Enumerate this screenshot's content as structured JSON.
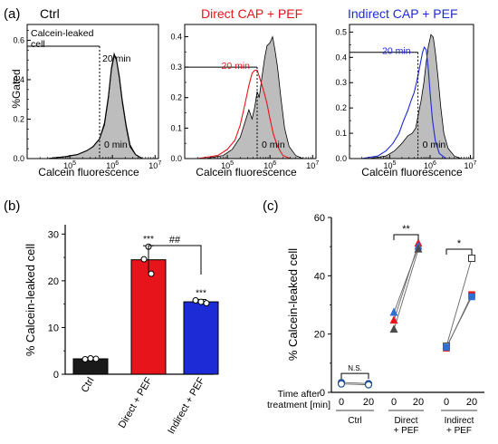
{
  "figure": {
    "panel_a_label": "(a)",
    "panel_b_label": "(b)",
    "panel_c_label": "(c)"
  },
  "colors": {
    "ctrl": "#000000",
    "direct": "#e8141b",
    "indirect": "#1d2bd6",
    "gray_fill": "#bdbdbd",
    "ctrl_bar": "#1a1a1a",
    "direct_triangle": "#e8141b",
    "indirect_triangle": "#2d6fd0",
    "dark_triangle": "#4a4a4a"
  },
  "chart_data": [
    {
      "type": "area",
      "panel": "a",
      "title": "Ctrl",
      "xlabel": "Calcein fluorescence",
      "ylabel": "%Gated",
      "x_scale": "log",
      "xlim": [
        10000,
        12000000
      ],
      "ylim": [
        0,
        0.68
      ],
      "x_ticks": [
        "10^5",
        "10^6",
        "10^7"
      ],
      "y_ticks": [
        "0.0",
        "0.2",
        "0.4",
        "0.6"
      ],
      "gate_label": "Calcein-leaked\ncell",
      "gate_line_x": 500000,
      "gate_line_y": 0.57,
      "series": [
        {
          "label": "0 min",
          "style": "gray-filled",
          "points": [
            [
              30000,
              0.0
            ],
            [
              80000,
              0.01
            ],
            [
              150000,
              0.02
            ],
            [
              250000,
              0.04
            ],
            [
              350000,
              0.06
            ],
            [
              500000,
              0.1
            ],
            [
              650000,
              0.17
            ],
            [
              800000,
              0.3
            ],
            [
              950000,
              0.45
            ],
            [
              1100000,
              0.52
            ],
            [
              1250000,
              0.5
            ],
            [
              1450000,
              0.42
            ],
            [
              1700000,
              0.3
            ],
            [
              2100000,
              0.17
            ],
            [
              2600000,
              0.07
            ],
            [
              3500000,
              0.02
            ],
            [
              5000000,
              0.0
            ]
          ]
        },
        {
          "label": "20 min",
          "style": "black-line",
          "points": [
            [
              30000,
              0.0
            ],
            [
              80000,
              0.01
            ],
            [
              150000,
              0.02
            ],
            [
              250000,
              0.04
            ],
            [
              350000,
              0.06
            ],
            [
              500000,
              0.1
            ],
            [
              650000,
              0.18
            ],
            [
              800000,
              0.31
            ],
            [
              950000,
              0.46
            ],
            [
              1100000,
              0.53
            ],
            [
              1250000,
              0.5
            ],
            [
              1450000,
              0.41
            ],
            [
              1700000,
              0.29
            ],
            [
              2100000,
              0.16
            ],
            [
              2600000,
              0.06
            ],
            [
              3500000,
              0.02
            ],
            [
              5000000,
              0.0
            ]
          ]
        }
      ],
      "annotations": [
        "20 min",
        "0 min"
      ]
    },
    {
      "type": "area",
      "panel": "a",
      "title": "Direct CAP + PEF",
      "xlabel": "Calcein fluorescence",
      "x_scale": "log",
      "xlim": [
        10000,
        12000000
      ],
      "ylim": [
        0,
        0.44
      ],
      "x_ticks": [
        "10^5",
        "10^6",
        "10^7"
      ],
      "y_ticks": [
        "0.0",
        "0.1",
        "0.2",
        "0.3",
        "0.4"
      ],
      "gate_line_x": 500000,
      "gate_line_y": 0.3,
      "series": [
        {
          "label": "0 min",
          "style": "gray-filled",
          "points": [
            [
              30000,
              0.0
            ],
            [
              80000,
              0.01
            ],
            [
              130000,
              0.03
            ],
            [
              200000,
              0.07
            ],
            [
              260000,
              0.12
            ],
            [
              320000,
              0.16
            ],
            [
              380000,
              0.13
            ],
            [
              440000,
              0.17
            ],
            [
              500000,
              0.22
            ],
            [
              560000,
              0.2
            ],
            [
              650000,
              0.27
            ],
            [
              750000,
              0.33
            ],
            [
              850000,
              0.37
            ],
            [
              1000000,
              0.38
            ],
            [
              1150000,
              0.4
            ],
            [
              1300000,
              0.36
            ],
            [
              1500000,
              0.3
            ],
            [
              1800000,
              0.2
            ],
            [
              2200000,
              0.1
            ],
            [
              2800000,
              0.04
            ],
            [
              4000000,
              0.01
            ],
            [
              6000000,
              0.0
            ]
          ]
        },
        {
          "label": "20 min",
          "style": "red-line",
          "points": [
            [
              20000,
              0.0
            ],
            [
              60000,
              0.01
            ],
            [
              100000,
              0.03
            ],
            [
              150000,
              0.06
            ],
            [
              200000,
              0.11
            ],
            [
              260000,
              0.18
            ],
            [
              320000,
              0.24
            ],
            [
              380000,
              0.28
            ],
            [
              440000,
              0.29
            ],
            [
              500000,
              0.29
            ],
            [
              560000,
              0.27
            ],
            [
              650000,
              0.24
            ],
            [
              750000,
              0.21
            ],
            [
              850000,
              0.18
            ],
            [
              1000000,
              0.13
            ],
            [
              1200000,
              0.08
            ],
            [
              1500000,
              0.04
            ],
            [
              2000000,
              0.01
            ],
            [
              3000000,
              0.0
            ]
          ]
        }
      ],
      "annotations": [
        "20 min",
        "0 min"
      ]
    },
    {
      "type": "area",
      "panel": "a",
      "title": "Indirect CAP + PEF",
      "xlabel": "Calcein fluorescence",
      "x_scale": "log",
      "xlim": [
        10000,
        12000000
      ],
      "ylim": [
        0,
        0.53
      ],
      "x_ticks": [
        "10^5",
        "10^6",
        "10^7"
      ],
      "y_ticks": [
        "0.0",
        "0.1",
        "0.2",
        "0.3",
        "0.4",
        "0.5"
      ],
      "gate_line_x": 500000,
      "gate_line_y": 0.42,
      "series": [
        {
          "label": "0 min",
          "style": "gray-filled",
          "points": [
            [
              30000,
              0.0
            ],
            [
              80000,
              0.01
            ],
            [
              130000,
              0.03
            ],
            [
              200000,
              0.06
            ],
            [
              280000,
              0.09
            ],
            [
              360000,
              0.1
            ],
            [
              440000,
              0.12
            ],
            [
              520000,
              0.18
            ],
            [
              600000,
              0.23
            ],
            [
              700000,
              0.3
            ],
            [
              800000,
              0.38
            ],
            [
              900000,
              0.44
            ],
            [
              1050000,
              0.49
            ],
            [
              1200000,
              0.48
            ],
            [
              1350000,
              0.42
            ],
            [
              1550000,
              0.33
            ],
            [
              1850000,
              0.2
            ],
            [
              2200000,
              0.1
            ],
            [
              2800000,
              0.04
            ],
            [
              4000000,
              0.01
            ],
            [
              6000000,
              0.0
            ]
          ]
        },
        {
          "label": "20 min",
          "style": "blue-line",
          "points": [
            [
              20000,
              0.0
            ],
            [
              50000,
              0.01
            ],
            [
              80000,
              0.03
            ],
            [
              120000,
              0.06
            ],
            [
              170000,
              0.1
            ],
            [
              220000,
              0.15
            ],
            [
              280000,
              0.19
            ],
            [
              340000,
              0.23
            ],
            [
              400000,
              0.26
            ],
            [
              460000,
              0.3
            ],
            [
              520000,
              0.34
            ],
            [
              580000,
              0.38
            ],
            [
              650000,
              0.42
            ],
            [
              720000,
              0.44
            ],
            [
              800000,
              0.43
            ],
            [
              900000,
              0.36
            ],
            [
              1000000,
              0.26
            ],
            [
              1150000,
              0.15
            ],
            [
              1350000,
              0.07
            ],
            [
              1700000,
              0.02
            ],
            [
              2500000,
              0.0
            ]
          ]
        }
      ],
      "annotations": [
        "20 min",
        "0 min"
      ]
    },
    {
      "type": "bar",
      "panel": "b",
      "ylabel": "% Calcein-leaked cell",
      "categories": [
        "Ctrl",
        "Direct + PEF",
        "Indirect + PEF"
      ],
      "values": [
        3.3,
        24.5,
        15.5
      ],
      "errors": [
        0.3,
        3.0,
        0.5
      ],
      "points": [
        [
          3.2,
          3.4,
          3.3
        ],
        [
          27.3,
          24.6,
          21.5
        ],
        [
          15.8,
          15.5,
          15.2
        ]
      ],
      "ylim": [
        0,
        32
      ],
      "y_ticks": [
        0,
        10,
        20,
        30
      ],
      "significance": {
        "bars": [
          "",
          "***",
          "***"
        ],
        "bracket": "##"
      }
    },
    {
      "type": "scatter",
      "panel": "c",
      "ylabel": "% Calcein-leaked cell",
      "ylim": [
        0,
        60
      ],
      "y_ticks": [
        0,
        20,
        40,
        60
      ],
      "x_axis_title": "Time after\ntreatment [min]",
      "groups": [
        {
          "name": "Ctrl",
          "times": [
            "0",
            "20"
          ],
          "significance": "N.S.",
          "series": [
            {
              "marker": "circle-filled",
              "values": [
                3.4,
                3.0
              ]
            },
            {
              "marker": "circle-open",
              "values": [
                2.9,
                2.6
              ]
            }
          ]
        },
        {
          "name": "Direct\n+ PEF",
          "times": [
            "0",
            "20"
          ],
          "significance": "**",
          "series": [
            {
              "marker": "triangle-red",
              "values": [
                24.6,
                51.0
              ]
            },
            {
              "marker": "triangle-blue",
              "values": [
                27.3,
                50.0
              ]
            },
            {
              "marker": "triangle-dark",
              "values": [
                21.5,
                49.0
              ]
            }
          ]
        },
        {
          "name": "Indirect\n+ PEF",
          "times": [
            "0",
            "20"
          ],
          "significance": "*",
          "series": [
            {
              "marker": "square-open",
              "values": [
                15.8,
                46.0
              ]
            },
            {
              "marker": "square-red",
              "values": [
                15.2,
                33.5
              ]
            },
            {
              "marker": "square-blue",
              "values": [
                15.5,
                32.8
              ]
            }
          ]
        }
      ]
    }
  ]
}
